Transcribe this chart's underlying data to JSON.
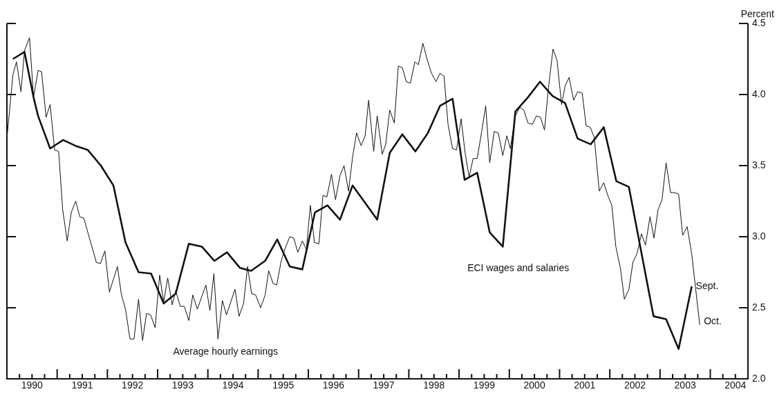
{
  "chart_data": {
    "type": "line",
    "ylabel": "Percent",
    "legend": false,
    "grid": false,
    "xlim": [
      1990,
      2004.75
    ],
    "ylim": [
      2.0,
      4.5
    ],
    "yticks": [
      {
        "value": 2.0,
        "label": "2.0"
      },
      {
        "value": 2.5,
        "label": "2.5"
      },
      {
        "value": 3.0,
        "label": "3.0"
      },
      {
        "value": 3.5,
        "label": "3.5"
      },
      {
        "value": 4.0,
        "label": "4.0"
      },
      {
        "value": 4.5,
        "label": "4.5"
      }
    ],
    "xticks": [
      {
        "value": 1990.25,
        "label": null
      },
      {
        "value": 1990.5,
        "label": "1990"
      },
      {
        "value": 1990.75,
        "label": null
      },
      {
        "value": 1991,
        "label": null
      },
      {
        "value": 1991.25,
        "label": null
      },
      {
        "value": 1991.5,
        "label": "1991"
      },
      {
        "value": 1991.75,
        "label": null
      },
      {
        "value": 1992,
        "label": null
      },
      {
        "value": 1992.25,
        "label": null
      },
      {
        "value": 1992.5,
        "label": "1992"
      },
      {
        "value": 1992.75,
        "label": null
      },
      {
        "value": 1993,
        "label": null
      },
      {
        "value": 1993.25,
        "label": null
      },
      {
        "value": 1993.5,
        "label": "1993"
      },
      {
        "value": 1993.75,
        "label": null
      },
      {
        "value": 1994,
        "label": null
      },
      {
        "value": 1994.25,
        "label": null
      },
      {
        "value": 1994.5,
        "label": "1994"
      },
      {
        "value": 1994.75,
        "label": null
      },
      {
        "value": 1995,
        "label": null
      },
      {
        "value": 1995.25,
        "label": null
      },
      {
        "value": 1995.5,
        "label": "1995"
      },
      {
        "value": 1995.75,
        "label": null
      },
      {
        "value": 1996,
        "label": null
      },
      {
        "value": 1996.25,
        "label": null
      },
      {
        "value": 1996.5,
        "label": "1996"
      },
      {
        "value": 1996.75,
        "label": null
      },
      {
        "value": 1997,
        "label": null
      },
      {
        "value": 1997.25,
        "label": null
      },
      {
        "value": 1997.5,
        "label": "1997"
      },
      {
        "value": 1997.75,
        "label": null
      },
      {
        "value": 1998,
        "label": null
      },
      {
        "value": 1998.25,
        "label": null
      },
      {
        "value": 1998.5,
        "label": "1998"
      },
      {
        "value": 1998.75,
        "label": null
      },
      {
        "value": 1999,
        "label": null
      },
      {
        "value": 1999.25,
        "label": null
      },
      {
        "value": 1999.5,
        "label": "1999"
      },
      {
        "value": 1999.75,
        "label": null
      },
      {
        "value": 2000,
        "label": null
      },
      {
        "value": 2000.25,
        "label": null
      },
      {
        "value": 2000.5,
        "label": "2000"
      },
      {
        "value": 2000.75,
        "label": null
      },
      {
        "value": 2001,
        "label": null
      },
      {
        "value": 2001.25,
        "label": null
      },
      {
        "value": 2001.5,
        "label": "2001"
      },
      {
        "value": 2001.75,
        "label": null
      },
      {
        "value": 2002,
        "label": null
      },
      {
        "value": 2002.25,
        "label": null
      },
      {
        "value": 2002.5,
        "label": "2002"
      },
      {
        "value": 2002.75,
        "label": null
      },
      {
        "value": 2003,
        "label": null
      },
      {
        "value": 2003.25,
        "label": null
      },
      {
        "value": 2003.5,
        "label": "2003"
      },
      {
        "value": 2003.75,
        "label": null
      },
      {
        "value": 2004,
        "label": null
      },
      {
        "value": 2004.25,
        "label": null
      },
      {
        "value": 2004.5,
        "label": "2004"
      }
    ],
    "series": [
      {
        "name": "Average hourly earnings",
        "color": "#111111",
        "x": [
          1990.01,
          1990.12,
          1990.19,
          1990.28,
          1990.35,
          1990.45,
          1990.53,
          1990.62,
          1990.69,
          1990.78,
          1990.86,
          1990.95,
          1991.03,
          1991.11,
          1991.2,
          1991.28,
          1991.37,
          1991.45,
          1991.53,
          1991.78,
          1991.86,
          1991.95,
          1992.04,
          1992.2,
          1992.28,
          1992.36,
          1992.45,
          1992.53,
          1992.62,
          1992.7,
          1992.78,
          1992.86,
          1992.95,
          1993.04,
          1993.12,
          1993.2,
          1993.29,
          1993.36,
          1993.45,
          1993.53,
          1993.62,
          1993.7,
          1993.79,
          1993.96,
          1994.04,
          1994.12,
          1994.2,
          1994.29,
          1994.37,
          1994.54,
          1994.62,
          1994.71,
          1994.79,
          1994.87,
          1994.95,
          1995.05,
          1995.14,
          1995.21,
          1995.3,
          1995.37,
          1995.46,
          1995.54,
          1995.63,
          1995.71,
          1995.79,
          1995.88,
          1995.96,
          1996.04,
          1996.12,
          1996.21,
          1996.29,
          1996.37,
          1996.46,
          1996.54,
          1996.63,
          1996.71,
          1996.8,
          1996.88,
          1996.96,
          1997.05,
          1997.13,
          1997.2,
          1997.3,
          1997.37,
          1997.47,
          1997.54,
          1997.62,
          1997.71,
          1997.79,
          1997.87,
          1997.95,
          1998.03,
          1998.12,
          1998.19,
          1998.28,
          1998.37,
          1998.45,
          1998.54,
          1998.62,
          1998.7,
          1998.78,
          1998.87,
          1998.95,
          1999.04,
          1999.12,
          1999.2,
          1999.28,
          1999.36,
          1999.45,
          1999.53,
          1999.61,
          1999.7,
          1999.78,
          1999.87,
          1999.95,
          2000.02,
          2000.12,
          2000.21,
          2000.29,
          2000.37,
          2000.46,
          2000.54,
          2000.62,
          2000.7,
          2000.78,
          2000.87,
          2000.95,
          2001.04,
          2001.11,
          2001.19,
          2001.28,
          2001.36,
          2001.45,
          2001.53,
          2001.61,
          2001.69,
          2001.79,
          2001.88,
          2001.96,
          2002.04,
          2002.12,
          2002.21,
          2002.29,
          2002.38,
          2002.46,
          2002.54,
          2002.63,
          2002.71,
          2002.8,
          2002.88,
          2002.96,
          2003.04,
          2003.12,
          2003.21,
          2003.29,
          2003.37,
          2003.45,
          2003.54,
          2003.63,
          2003.71,
          2003.79
        ],
        "values": [
          3.73,
          4.14,
          4.23,
          4.02,
          4.31,
          4.4,
          3.98,
          4.17,
          4.16,
          3.84,
          3.93,
          3.61,
          3.6,
          3.19,
          2.97,
          3.17,
          3.25,
          3.14,
          3.13,
          2.82,
          2.81,
          2.9,
          2.61,
          2.79,
          2.59,
          2.49,
          2.28,
          2.28,
          2.56,
          2.27,
          2.46,
          2.45,
          2.36,
          2.73,
          2.54,
          2.71,
          2.52,
          2.62,
          2.51,
          2.51,
          2.41,
          2.59,
          2.49,
          2.66,
          2.48,
          2.74,
          2.28,
          2.55,
          2.45,
          2.63,
          2.44,
          2.53,
          2.79,
          2.6,
          2.59,
          2.5,
          2.59,
          2.76,
          2.67,
          2.66,
          2.83,
          2.92,
          3.0,
          2.99,
          2.89,
          2.97,
          2.91,
          3.22,
          2.96,
          2.95,
          3.29,
          3.28,
          3.44,
          3.26,
          3.43,
          3.5,
          3.32,
          3.56,
          3.73,
          3.64,
          3.71,
          3.96,
          3.6,
          3.85,
          3.58,
          3.65,
          3.89,
          3.8,
          4.2,
          4.19,
          4.09,
          4.08,
          4.23,
          4.21,
          4.36,
          4.24,
          4.15,
          4.09,
          4.15,
          4.13,
          3.79,
          3.62,
          3.61,
          3.83,
          3.59,
          3.42,
          3.55,
          3.55,
          3.74,
          3.92,
          3.52,
          3.74,
          3.73,
          3.57,
          3.71,
          3.62,
          3.85,
          3.91,
          3.89,
          3.8,
          3.79,
          3.85,
          3.84,
          3.75,
          4.05,
          4.32,
          4.24,
          3.93,
          4.06,
          4.12,
          3.96,
          4.02,
          4.01,
          3.78,
          3.77,
          3.7,
          3.32,
          3.38,
          3.29,
          3.22,
          2.93,
          2.78,
          2.56,
          2.63,
          2.82,
          2.88,
          3.02,
          2.94,
          3.14,
          2.99,
          3.19,
          3.26,
          3.52,
          3.31,
          3.31,
          3.3,
          3.01,
          3.07,
          2.88,
          2.63,
          2.38
        ]
      },
      {
        "name": "ECI wages and salaries",
        "color": "#111111",
        "x": [
          1990.12,
          1990.35,
          1990.53,
          1990.62,
          1990.86,
          1991.12,
          1991.36,
          1991.61,
          1991.87,
          1992.12,
          1992.36,
          1992.62,
          1992.87,
          1993.12,
          1993.36,
          1993.62,
          1993.88,
          1994.13,
          1994.38,
          1994.64,
          1994.86,
          1995.14,
          1995.38,
          1995.63,
          1995.88,
          1996.13,
          1996.38,
          1996.63,
          1996.88,
          1997.37,
          1997.62,
          1997.87,
          1998.13,
          1998.38,
          1998.62,
          1998.87,
          1999.11,
          1999.36,
          1999.61,
          1999.87,
          2000.12,
          2000.37,
          2000.61,
          2000.86,
          2001.11,
          2001.36,
          2001.62,
          2001.88,
          2002.13,
          2002.38,
          2002.87,
          2003.12,
          2003.37,
          2003.63
        ],
        "values": [
          4.25,
          4.3,
          3.98,
          3.85,
          3.62,
          3.68,
          3.64,
          3.61,
          3.5,
          3.36,
          2.96,
          2.75,
          2.74,
          2.53,
          2.6,
          2.95,
          2.93,
          2.83,
          2.89,
          2.78,
          2.76,
          2.83,
          2.98,
          2.79,
          2.77,
          3.17,
          3.22,
          3.12,
          3.36,
          3.12,
          3.59,
          3.72,
          3.6,
          3.73,
          3.92,
          3.97,
          3.4,
          3.45,
          3.03,
          2.93,
          3.88,
          3.98,
          4.09,
          3.99,
          3.94,
          3.69,
          3.65,
          3.77,
          3.39,
          3.35,
          2.44,
          2.42,
          2.21,
          2.65
        ]
      }
    ],
    "annotations": [
      {
        "text": "Sept.",
        "x": 2003.63,
        "y": 2.65
      },
      {
        "text": "Oct.",
        "x": 2003.79,
        "y": 2.38
      }
    ]
  }
}
